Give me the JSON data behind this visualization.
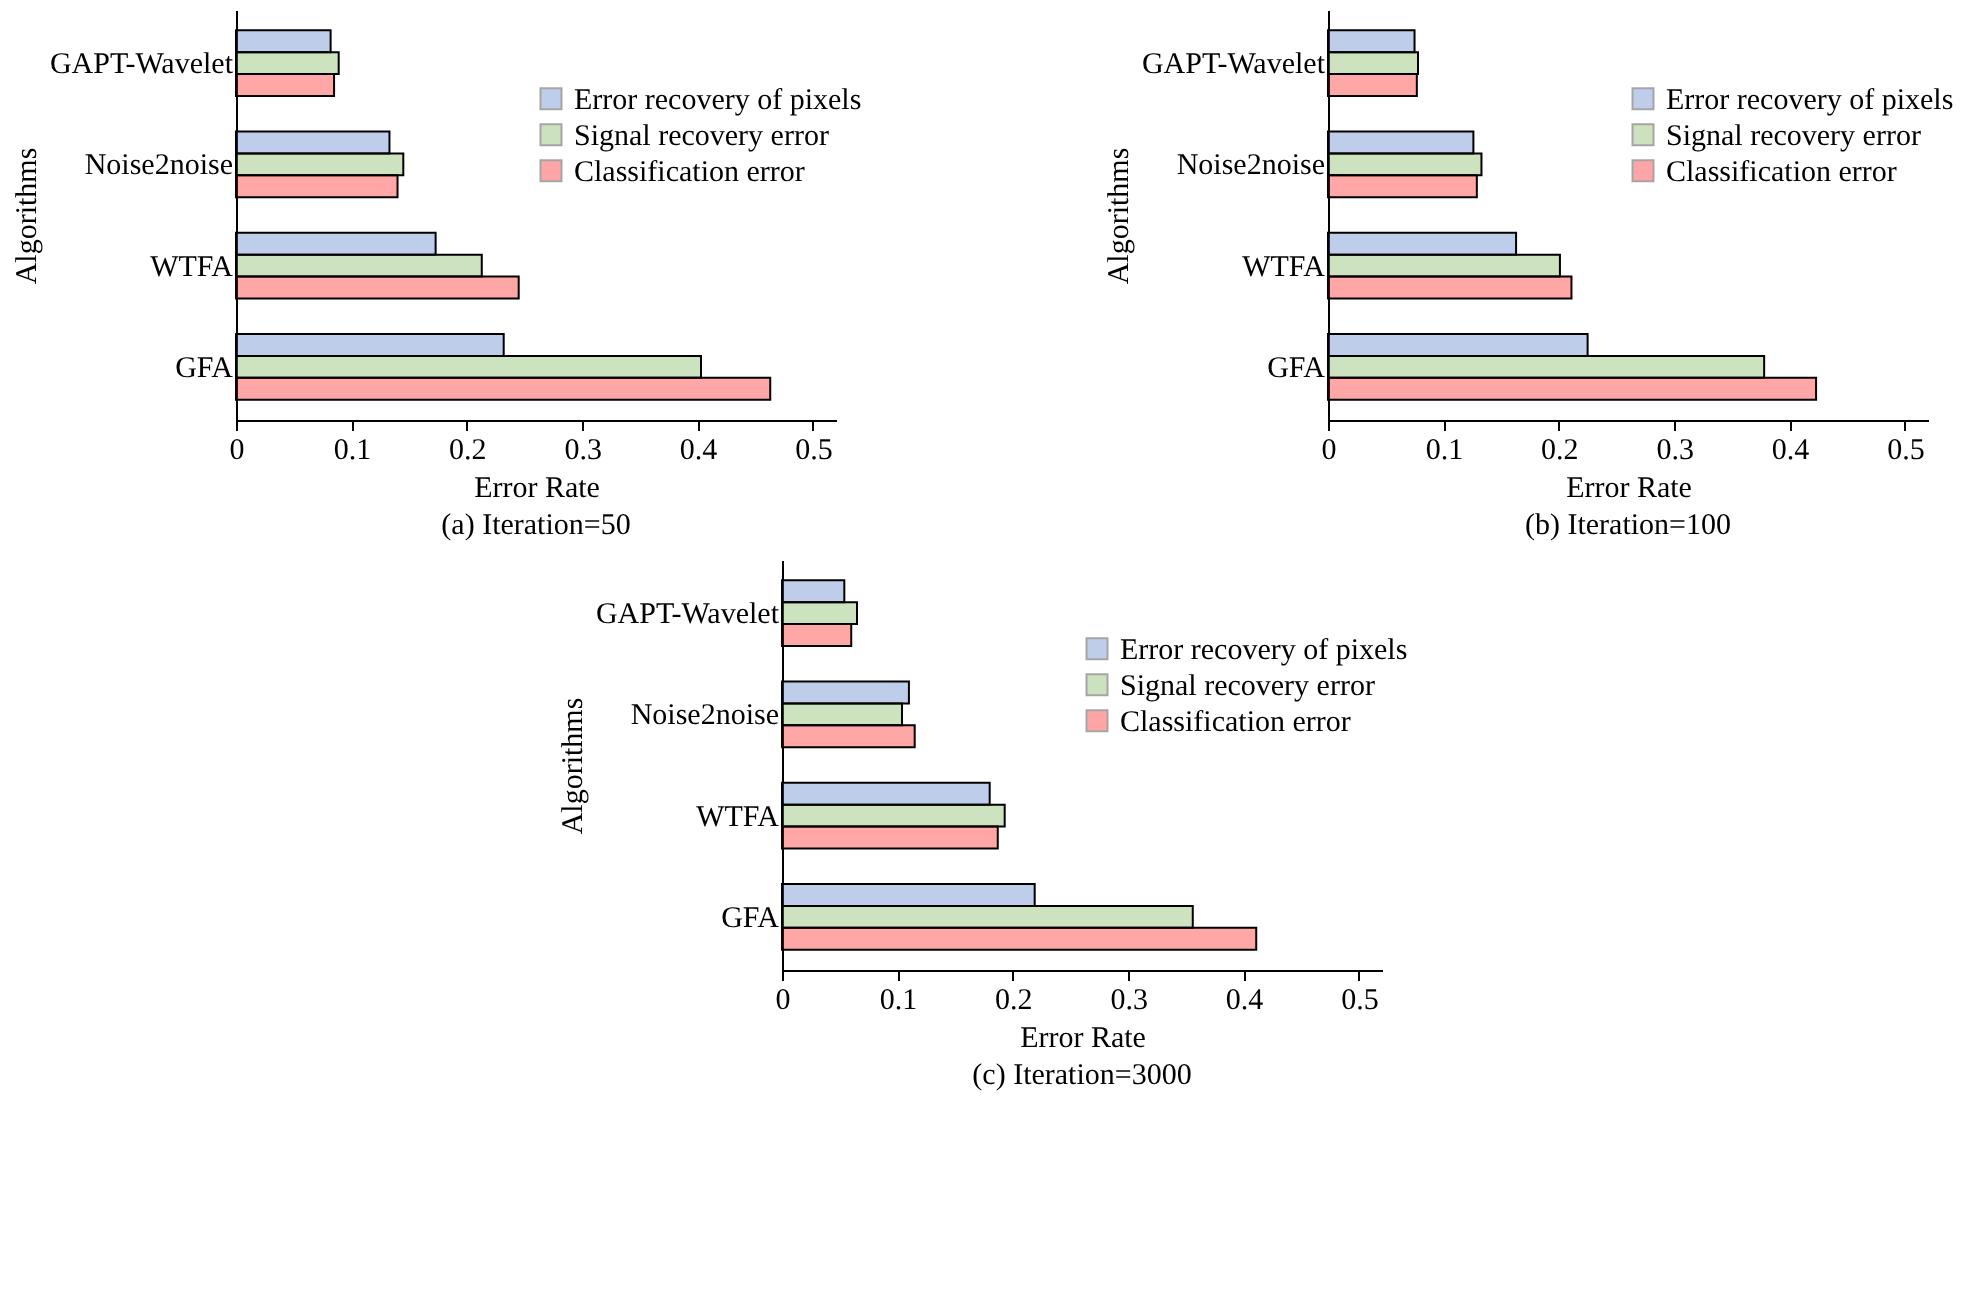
{
  "chart_data": [
    {
      "type": "bar",
      "orientation": "horizontal",
      "title": "(a) Iteration=50",
      "xlabel": "Error Rate",
      "ylabel": "Algorithms",
      "categories": [
        "GAPT-Wavelet",
        "Noise2noise",
        "WTFA",
        "GFA"
      ],
      "xlim": [
        0,
        0.52
      ],
      "xticks": [
        0,
        0.1,
        0.2,
        0.3,
        0.4,
        0.5
      ],
      "grid": false,
      "legend": "top right",
      "series": [
        {
          "name": "Error recovery of pixels",
          "color": "#4472c4",
          "values": [
            0.082,
            0.133,
            0.173,
            0.232
          ]
        },
        {
          "name": "Signal recovery error",
          "color": "#70ad47",
          "values": [
            0.089,
            0.145,
            0.213,
            0.403
          ]
        },
        {
          "name": "Classification error",
          "color": "#ff0000",
          "values": [
            0.085,
            0.14,
            0.245,
            0.463
          ]
        }
      ]
    },
    {
      "type": "bar",
      "orientation": "horizontal",
      "title": "(b) Iteration=100",
      "xlabel": "Error Rate",
      "ylabel": "Algorithms",
      "categories": [
        "GAPT-Wavelet",
        "Noise2noise",
        "WTFA",
        "GFA"
      ],
      "xlim": [
        0,
        0.52
      ],
      "xticks": [
        0,
        0.1,
        0.2,
        0.3,
        0.4,
        0.5
      ],
      "grid": false,
      "legend": "top right",
      "series": [
        {
          "name": "Error recovery of pixels",
          "color": "#4472c4",
          "values": [
            0.075,
            0.126,
            0.163,
            0.225
          ]
        },
        {
          "name": "Signal recovery error",
          "color": "#70ad47",
          "values": [
            0.078,
            0.133,
            0.201,
            0.378
          ]
        },
        {
          "name": "Classification error",
          "color": "#ff0000",
          "values": [
            0.077,
            0.129,
            0.211,
            0.423
          ]
        }
      ]
    },
    {
      "type": "bar",
      "orientation": "horizontal",
      "title": "(c) Iteration=3000",
      "xlabel": "Error Rate",
      "ylabel": "Algorithms",
      "categories": [
        "GAPT-Wavelet",
        "Noise2noise",
        "WTFA",
        "GFA"
      ],
      "xlim": [
        0,
        0.52
      ],
      "xticks": [
        0,
        0.1,
        0.2,
        0.3,
        0.4,
        0.5
      ],
      "grid": false,
      "legend": "top right",
      "series": [
        {
          "name": "Error recovery of pixels",
          "color": "#4472c4",
          "values": [
            0.054,
            0.11,
            0.18,
            0.219
          ]
        },
        {
          "name": "Signal recovery error",
          "color": "#70ad47",
          "values": [
            0.065,
            0.104,
            0.193,
            0.356
          ]
        },
        {
          "name": "Classification error",
          "color": "#ff0000",
          "values": [
            0.06,
            0.115,
            0.187,
            0.411
          ]
        }
      ]
    }
  ]
}
